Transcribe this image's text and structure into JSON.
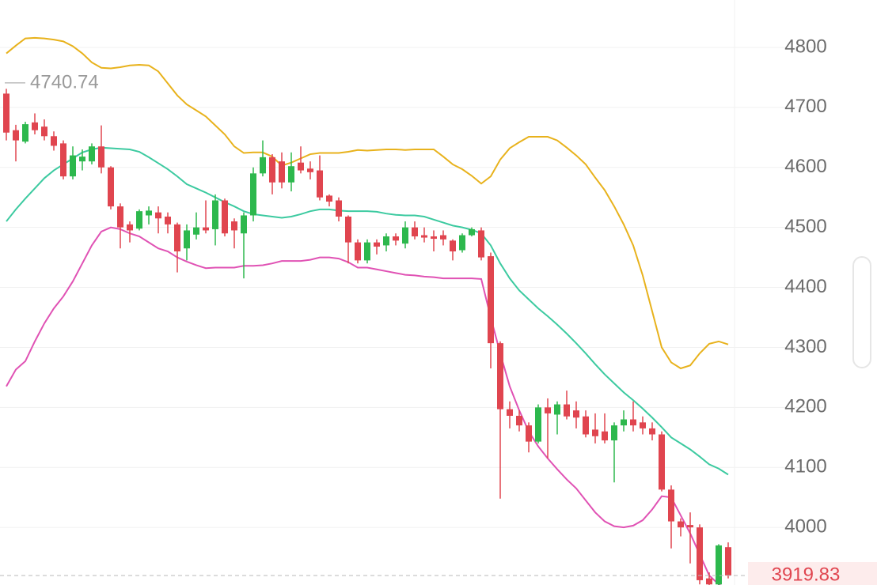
{
  "chart_data": {
    "type": "candlestick",
    "up_color": "#2db84d",
    "down_color": "#e0454f",
    "grid": true,
    "ylim": [
      3904,
      4879
    ],
    "yticks": [
      4000,
      4100,
      4200,
      4300,
      4400,
      4500,
      4600,
      4700,
      4800
    ],
    "high_marker": 4740.74,
    "last_price": 3919.83,
    "open": [
      4723,
      4662,
      4643,
      4675,
      4668,
      4652,
      4640,
      4585,
      4610,
      4610,
      4635,
      4600,
      4535,
      4505,
      4498,
      4520,
      4525,
      4518,
      4505,
      4465,
      4488,
      4500,
      4497,
      4545,
      4510,
      4490,
      4520,
      4590,
      4617,
      4610,
      4575,
      4608,
      4598,
      4595,
      4553,
      4545,
      4518,
      4475,
      4445,
      4475,
      4470,
      4485,
      4473,
      4500,
      4487,
      4485,
      4487,
      4478,
      4462,
      4487,
      4495,
      4452,
      4307,
      4197,
      4186,
      4170,
      4143,
      4200,
      4188,
      4205,
      4195,
      4185,
      4163,
      4160,
      4145,
      4170,
      4180,
      4175,
      4165,
      4155,
      4063,
      4010,
      4004,
      4000,
      3915,
      3905,
      3967
    ],
    "high": [
      4731,
      4671,
      4676,
      4690,
      4680,
      4660,
      4645,
      4635,
      4630,
      4640,
      4670,
      4602,
      4540,
      4510,
      4530,
      4535,
      4535,
      4525,
      4508,
      4505,
      4525,
      4545,
      4555,
      4548,
      4515,
      4525,
      4600,
      4645,
      4622,
      4625,
      4625,
      4635,
      4610,
      4620,
      4555,
      4550,
      4520,
      4480,
      4480,
      4480,
      4490,
      4490,
      4510,
      4510,
      4500,
      4495,
      4495,
      4480,
      4490,
      4500,
      4500,
      4458,
      4310,
      4210,
      4195,
      4175,
      4205,
      4215,
      4210,
      4228,
      4210,
      4195,
      4190,
      4190,
      4175,
      4195,
      4210,
      4185,
      4175,
      4160,
      4070,
      4015,
      4025,
      4005,
      3925,
      3972,
      3975
    ],
    "low": [
      4645,
      4610,
      4640,
      4655,
      4645,
      4628,
      4580,
      4580,
      4595,
      4605,
      4590,
      4530,
      4465,
      4475,
      4495,
      4505,
      4490,
      4490,
      4425,
      4445,
      4480,
      4490,
      4470,
      4485,
      4465,
      4415,
      4510,
      4585,
      4555,
      4565,
      4560,
      4590,
      4580,
      4545,
      4535,
      4510,
      4440,
      4440,
      4440,
      4455,
      4460,
      4470,
      4465,
      4480,
      4475,
      4460,
      4470,
      4445,
      4458,
      4485,
      4445,
      4265,
      4048,
      4165,
      4160,
      4125,
      4140,
      4115,
      4155,
      4180,
      4165,
      4150,
      4140,
      4140,
      4075,
      4160,
      4160,
      4155,
      4145,
      4060,
      3965,
      3985,
      3940,
      3905,
      3900,
      3900,
      3915
    ],
    "close": [
      4658,
      4645,
      4672,
      4662,
      4652,
      4636,
      4585,
      4620,
      4618,
      4635,
      4600,
      4535,
      4500,
      4495,
      4527,
      4528,
      4515,
      4505,
      4460,
      4495,
      4500,
      4495,
      4545,
      4490,
      4495,
      4520,
      4590,
      4617,
      4575,
      4575,
      4602,
      4595,
      4592,
      4550,
      4543,
      4518,
      4475,
      4445,
      4475,
      4468,
      4485,
      4478,
      4500,
      4485,
      4483,
      4481,
      4480,
      4460,
      4487,
      4497,
      4450,
      4307,
      4197,
      4186,
      4170,
      4143,
      4200,
      4190,
      4205,
      4185,
      4183,
      4155,
      4152,
      4145,
      4170,
      4180,
      4170,
      4165,
      4155,
      4063,
      4010,
      4000,
      4000,
      3912,
      3905,
      3970,
      3920
    ],
    "series": [
      {
        "color": "#e8b21c",
        "values": [
          4790,
          4803,
          4815,
          4816,
          4815,
          4813,
          4810,
          4802,
          4790,
          4775,
          4766,
          4765,
          4767,
          4770,
          4771,
          4770,
          4760,
          4740,
          4720,
          4705,
          4695,
          4685,
          4670,
          4655,
          4635,
          4624,
          4625,
          4625,
          4618,
          4603,
          4608,
          4615,
          4622,
          4624,
          4624,
          4624,
          4626,
          4629,
          4628,
          4629,
          4630,
          4630,
          4629,
          4630,
          4630,
          4630,
          4618,
          4605,
          4597,
          4586,
          4573,
          4585,
          4613,
          4632,
          4642,
          4651,
          4651,
          4651,
          4645,
          4633,
          4620,
          4605,
          4583,
          4562,
          4535,
          4505,
          4470,
          4420,
          4360,
          4300,
          4275,
          4265,
          4270,
          4290,
          4306,
          4310,
          4305
        ]
      },
      {
        "color": "#3ccaa0",
        "values": [
          4510,
          4530,
          4548,
          4565,
          4582,
          4595,
          4605,
          4615,
          4625,
          4630,
          4633,
          4632,
          4631,
          4630,
          4626,
          4617,
          4607,
          4597,
          4585,
          4572,
          4565,
          4558,
          4550,
          4542,
          4535,
          4527,
          4522,
          4520,
          4518,
          4516,
          4518,
          4522,
          4527,
          4530,
          4530,
          4528,
          4527,
          4527,
          4527,
          4526,
          4523,
          4521,
          4520,
          4520,
          4518,
          4513,
          4508,
          4503,
          4500,
          4496,
          4490,
          4470,
          4440,
          4415,
          4395,
          4380,
          4365,
          4352,
          4338,
          4323,
          4307,
          4290,
          4272,
          4255,
          4240,
          4225,
          4212,
          4198,
          4183,
          4167,
          4150,
          4140,
          4130,
          4118,
          4105,
          4098,
          4088
        ]
      },
      {
        "color": "#e052b4",
        "values": [
          4235,
          4263,
          4277,
          4310,
          4340,
          4365,
          4385,
          4410,
          4440,
          4470,
          4493,
          4500,
          4497,
          4490,
          4485,
          4475,
          4465,
          4460,
          4450,
          4443,
          4437,
          4432,
          4433,
          4433,
          4433,
          4436,
          4436,
          4437,
          4440,
          4444,
          4444,
          4444,
          4446,
          4450,
          4450,
          4448,
          4442,
          4433,
          4433,
          4430,
          4427,
          4424,
          4421,
          4420,
          4418,
          4417,
          4415,
          4415,
          4415,
          4415,
          4414,
          4350,
          4290,
          4235,
          4195,
          4160,
          4135,
          4115,
          4097,
          4080,
          4065,
          4045,
          4025,
          4010,
          4002,
          4000,
          4003,
          4012,
          4030,
          4052,
          4050,
          4020,
          3990,
          3955,
          3920,
          3905,
          3895
        ]
      }
    ]
  }
}
